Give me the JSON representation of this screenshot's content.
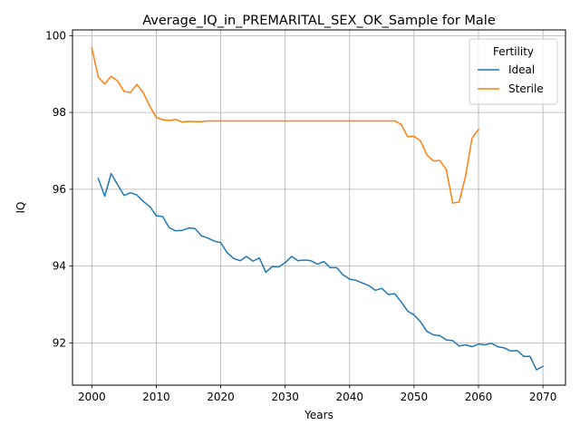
{
  "chart_data": {
    "type": "line",
    "title": "Average_IQ_in_PREMARITAL_SEX_OK_Sample for Male",
    "xlabel": "Years",
    "ylabel": "IQ",
    "xlim": [
      1997,
      2073.5
    ],
    "ylim": [
      90.9,
      100.15
    ],
    "x_ticks": [
      2000,
      2010,
      2020,
      2030,
      2040,
      2050,
      2060,
      2070
    ],
    "y_ticks": [
      92,
      94,
      96,
      98,
      100
    ],
    "grid": true,
    "legend": {
      "title": "Fertility",
      "placement": "top-right"
    },
    "series": [
      {
        "name": "Ideal",
        "color": "#1f77b4",
        "x": [
          2001,
          2002,
          2003,
          2004,
          2005,
          2006,
          2007,
          2008,
          2009,
          2010,
          2011,
          2012,
          2013,
          2014,
          2015,
          2016,
          2017,
          2018,
          2019,
          2020,
          2021,
          2022,
          2023,
          2024,
          2025,
          2026,
          2027,
          2028,
          2029,
          2030,
          2031,
          2032,
          2033,
          2034,
          2035,
          2036,
          2037,
          2038,
          2039,
          2040,
          2041,
          2042,
          2043,
          2044,
          2045,
          2046,
          2047,
          2048,
          2049,
          2050,
          2051,
          2052,
          2053,
          2054,
          2055,
          2056,
          2057,
          2058,
          2059,
          2060,
          2061,
          2062,
          2063,
          2064,
          2065,
          2066,
          2067,
          2068,
          2069,
          2070
        ],
        "values": [
          96.28,
          95.82,
          96.41,
          96.12,
          95.84,
          95.91,
          95.85,
          95.68,
          95.55,
          95.31,
          95.29,
          95.0,
          94.92,
          94.93,
          94.99,
          94.98,
          94.79,
          94.73,
          94.65,
          94.61,
          94.35,
          94.2,
          94.14,
          94.25,
          94.13,
          94.21,
          93.84,
          93.99,
          93.98,
          94.09,
          94.25,
          94.14,
          94.16,
          94.14,
          94.05,
          94.12,
          93.96,
          93.96,
          93.77,
          93.66,
          93.63,
          93.56,
          93.49,
          93.37,
          93.42,
          93.26,
          93.28,
          93.07,
          92.83,
          92.73,
          92.55,
          92.3,
          92.21,
          92.19,
          92.08,
          92.06,
          91.92,
          91.95,
          91.9,
          91.97,
          91.95,
          91.99,
          91.9,
          91.87,
          91.79,
          91.8,
          91.65,
          91.65,
          91.3,
          91.39
        ]
      },
      {
        "name": "Sterile",
        "color": "#ff7f0e",
        "x": [
          2000,
          2001,
          2002,
          2003,
          2004,
          2005,
          2006,
          2007,
          2008,
          2009,
          2010,
          2011,
          2012,
          2013,
          2014,
          2015,
          2016,
          2017,
          2018,
          2019,
          2020,
          2021,
          2022,
          2023,
          2024,
          2025,
          2026,
          2027,
          2028,
          2029,
          2030,
          2031,
          2032,
          2033,
          2034,
          2035,
          2036,
          2037,
          2038,
          2039,
          2040,
          2041,
          2042,
          2043,
          2044,
          2045,
          2046,
          2047,
          2048,
          2049,
          2050,
          2051,
          2052,
          2053,
          2054,
          2055,
          2056,
          2057,
          2058,
          2059,
          2060
        ],
        "values": [
          99.68,
          98.92,
          98.74,
          98.94,
          98.82,
          98.55,
          98.52,
          98.73,
          98.51,
          98.16,
          97.87,
          97.81,
          97.79,
          97.82,
          97.75,
          97.77,
          97.76,
          97.76,
          97.78,
          97.78,
          97.78,
          97.78,
          97.78,
          97.78,
          97.78,
          97.78,
          97.78,
          97.78,
          97.78,
          97.78,
          97.78,
          97.78,
          97.78,
          97.78,
          97.78,
          97.78,
          97.78,
          97.78,
          97.78,
          97.78,
          97.78,
          97.78,
          97.78,
          97.78,
          97.78,
          97.78,
          97.78,
          97.78,
          97.69,
          97.37,
          97.38,
          97.26,
          96.89,
          96.74,
          96.75,
          96.51,
          95.64,
          95.67,
          96.35,
          97.33,
          97.56
        ]
      }
    ]
  }
}
